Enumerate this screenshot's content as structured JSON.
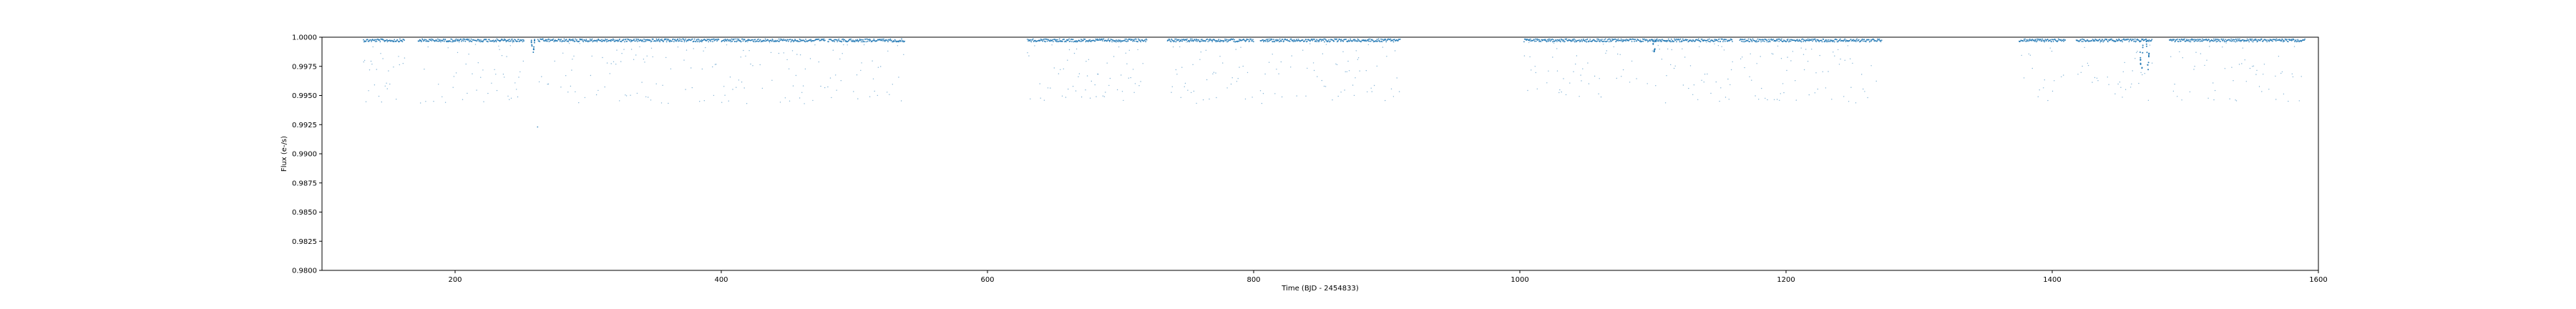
{
  "chart_data": {
    "type": "scatter",
    "title": "",
    "xlabel": "Time (BJD - 2454833)",
    "ylabel": "Flux (e-/s)",
    "xlim": [
      100,
      1600
    ],
    "ylim": [
      0.98,
      1.0
    ],
    "xticks": [
      "200",
      "400",
      "600",
      "800",
      "1000",
      "1200",
      "1400",
      "1600"
    ],
    "yticks": [
      "0.9800",
      "0.9825",
      "0.9850",
      "0.9875",
      "0.9900",
      "0.9925",
      "0.9950",
      "0.9975",
      "1.0000"
    ],
    "grid": false,
    "marker_color": "#1f77b4",
    "series": [
      {
        "segments": [
          [
            131,
            162
          ],
          [
            172,
            252
          ],
          [
            262,
            398
          ],
          [
            400,
            478
          ],
          [
            480,
            538
          ],
          [
            630,
            720
          ],
          [
            735,
            800
          ],
          [
            805,
            910
          ],
          [
            1003,
            1160
          ],
          [
            1165,
            1272
          ],
          [
            1375,
            1410
          ],
          [
            1418,
            1475
          ],
          [
            1488,
            1590
          ]
        ],
        "baseline": 0.99985,
        "scatter_min": 0.9943,
        "dips": [
          {
            "x": 258.5,
            "depth": 0.9985
          },
          {
            "x": 1101,
            "depth": 0.9988
          },
          {
            "x": 1467,
            "depth": 0.9962
          },
          {
            "x": 1472,
            "depth": 0.9972
          }
        ],
        "outliers": [
          {
            "x": 262,
            "y": 0.9923
          }
        ]
      }
    ]
  }
}
